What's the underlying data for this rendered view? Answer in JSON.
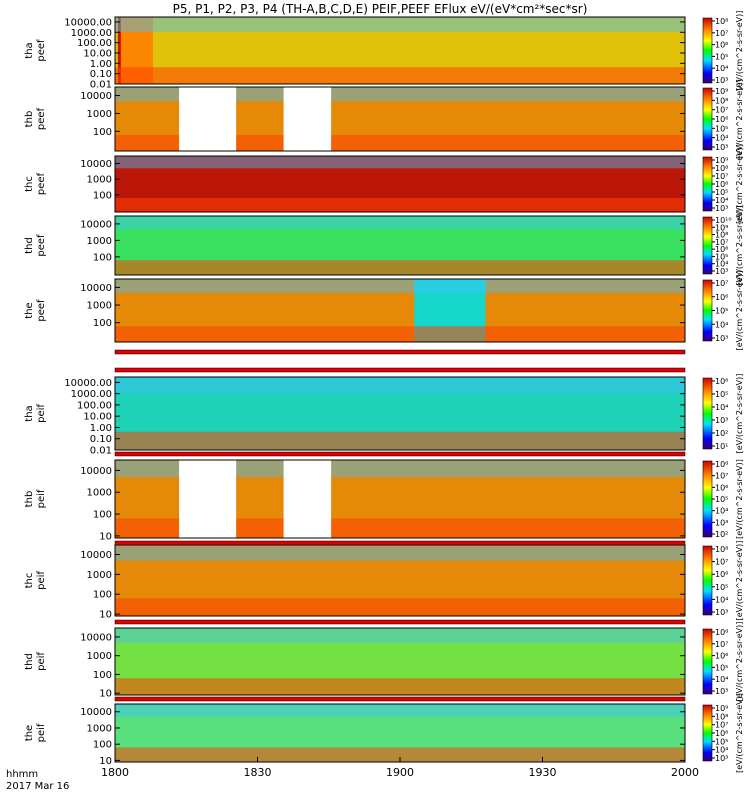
{
  "title": "P5, P1, P2, P3, P4 (TH-A,B,C,D,E) PEIF,PEEF EFlux eV/(eV*cm²*sec*sr)",
  "chart_data": {
    "type": "heatmap",
    "time_label": "hhmm",
    "date_label": "2017 Mar 16",
    "x_range": [
      "18:00",
      "20:00"
    ],
    "x_ticks": [
      "1800",
      "1830",
      "1900",
      "1930",
      "2000"
    ],
    "colorbar_unit": "[eV/(cm^2-s-sr-eV)]",
    "panels": [
      {
        "probe": "tha",
        "species": "peef",
        "ylim": [
          0.01,
          30000
        ],
        "yscale": "log",
        "y_ticks": [
          "0.01",
          "0.10",
          "1.00",
          "10.00",
          "100.00",
          "1000.00",
          "10000.00"
        ],
        "cbar_ticks": [
          "10³",
          "10⁴",
          "10⁵",
          "10⁶",
          "10⁷",
          "10⁸"
        ],
        "regions": [
          [
            0,
            120,
            "#f8c000"
          ],
          [
            0.6,
            1.25,
            "#d00000"
          ],
          [
            1.25,
            8,
            "#ff8000"
          ]
        ]
      },
      {
        "probe": "thb",
        "species": "peef",
        "ylim": [
          8,
          30000
        ],
        "yscale": "log",
        "y_ticks": [
          "100",
          "1000",
          "10000"
        ],
        "cbar_ticks": [
          "10³",
          "10⁴",
          "10⁵",
          "10⁶",
          "10⁷",
          "10⁸",
          "10⁹"
        ],
        "regions": [
          [
            0,
            120,
            "#ff8000"
          ]
        ],
        "gaps": [
          [
            13.5,
            25.5
          ],
          [
            35.5,
            45.5
          ]
        ]
      },
      {
        "probe": "thc",
        "species": "peef",
        "ylim": [
          8,
          30000
        ],
        "yscale": "log",
        "y_ticks": [
          "100",
          "1000",
          "10000"
        ],
        "cbar_ticks": [
          "10³",
          "10⁴",
          "10⁵",
          "10⁶",
          "10⁷",
          "10⁸",
          "10⁹"
        ],
        "regions": [
          [
            0,
            120,
            "#d00000"
          ]
        ]
      },
      {
        "probe": "thd",
        "species": "peef",
        "ylim": [
          8,
          30000
        ],
        "yscale": "log",
        "y_ticks": [
          "100",
          "1000",
          "10000"
        ],
        "cbar_ticks": [
          "10³",
          "10⁴",
          "10⁵",
          "10⁶",
          "10⁷",
          "10⁸",
          "10⁹",
          "10¹⁰"
        ],
        "regions": [
          [
            0,
            120,
            "#40e060"
          ]
        ]
      },
      {
        "probe": "the",
        "species": "peef",
        "ylim": [
          8,
          30000
        ],
        "yscale": "log",
        "y_ticks": [
          "100",
          "1000",
          "10000"
        ],
        "cbar_ticks": [
          "10³",
          "10⁴",
          "10⁵",
          "10⁶",
          "10⁷"
        ],
        "regions": [
          [
            0,
            120,
            "#ff8000"
          ],
          [
            63,
            78,
            "#00e0e0"
          ]
        ]
      },
      {
        "probe": "tha",
        "species": "peif",
        "ylim": [
          0.01,
          30000
        ],
        "yscale": "log",
        "y_ticks": [
          "0.01",
          "0.10",
          "1.00",
          "10.00",
          "100.00",
          "1000.00",
          "10000.00"
        ],
        "cbar_ticks": [
          "10¹",
          "10²",
          "10³",
          "10⁴",
          "10⁵",
          "10⁶"
        ],
        "regions": [
          [
            0,
            120,
            "#20d0c0"
          ]
        ]
      },
      {
        "probe": "thb",
        "species": "peif",
        "ylim": [
          8,
          30000
        ],
        "yscale": "log",
        "y_ticks": [
          "10",
          "100",
          "1000",
          "10000"
        ],
        "cbar_ticks": [
          "10²",
          "10³",
          "10⁴",
          "10⁵",
          "10⁶",
          "10⁷",
          "10⁸"
        ],
        "regions": [
          [
            0,
            120,
            "#ff8000"
          ]
        ],
        "gaps": [
          [
            13.5,
            25.5
          ],
          [
            35.5,
            45.5
          ]
        ]
      },
      {
        "probe": "thc",
        "species": "peif",
        "ylim": [
          8,
          30000
        ],
        "yscale": "log",
        "y_ticks": [
          "10",
          "100",
          "1000",
          "10000"
        ],
        "cbar_ticks": [
          "10³",
          "10⁴",
          "10⁵",
          "10⁶",
          "10⁷",
          "10⁸"
        ],
        "regions": [
          [
            0,
            120,
            "#ff8000"
          ]
        ]
      },
      {
        "probe": "thd",
        "species": "peif",
        "ylim": [
          8,
          30000
        ],
        "yscale": "log",
        "y_ticks": [
          "10",
          "100",
          "1000",
          "10000"
        ],
        "cbar_ticks": [
          "10³",
          "10⁴",
          "10⁵",
          "10⁶",
          "10⁷",
          "10⁸"
        ],
        "regions": [
          [
            0,
            120,
            "#80e040"
          ]
        ]
      },
      {
        "probe": "the",
        "species": "peif",
        "ylim": [
          8,
          30000
        ],
        "yscale": "log",
        "y_ticks": [
          "10",
          "100",
          "1000",
          "10000"
        ],
        "cbar_ticks": [
          "10³",
          "10⁴",
          "10⁵",
          "10⁶",
          "10⁷",
          "10⁸",
          "10⁹"
        ],
        "regions": [
          [
            0,
            120,
            "#60e080"
          ]
        ]
      }
    ]
  }
}
